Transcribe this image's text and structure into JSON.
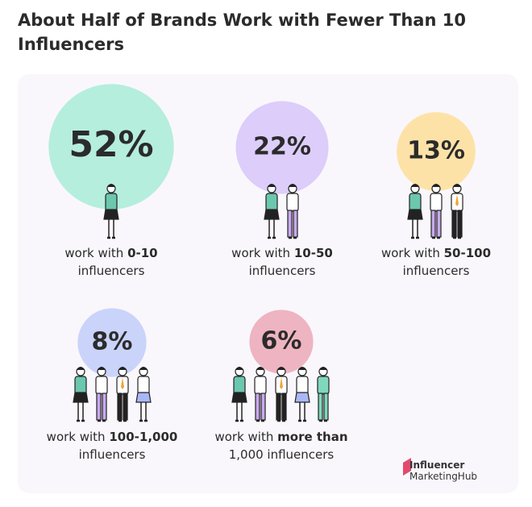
{
  "chart_data": {
    "type": "bubble",
    "title": "About Half of Brands Work with Fewer Than 10 Influencers",
    "values": [
      52,
      22,
      13,
      8,
      6
    ],
    "value_labels": [
      "52%",
      "22%",
      "13%",
      "8%",
      "6%"
    ],
    "colors": [
      "#b5eedd",
      "#ddcdfa",
      "#fde2a8",
      "#cad3fa",
      "#efb4c1"
    ],
    "labels": [
      [
        {
          "text": "work with ",
          "bold": false
        },
        {
          "text": "0-10",
          "bold": true
        },
        {
          "text": " influencers",
          "bold": false
        }
      ],
      [
        {
          "text": "work with ",
          "bold": false
        },
        {
          "text": "10-50",
          "bold": true
        },
        {
          "text": " influencers",
          "bold": false
        }
      ],
      [
        {
          "text": "work with ",
          "bold": false
        },
        {
          "text": "50-100",
          "bold": true
        },
        {
          "text": " influencers",
          "bold": false
        }
      ],
      [
        {
          "text": "work with ",
          "bold": false
        },
        {
          "text": "100-1,000",
          "bold": true
        },
        {
          "text": " influencers",
          "bold": false
        }
      ],
      [
        {
          "text": "work with ",
          "bold": false
        },
        {
          "text": "more than",
          "bold": true
        },
        {
          "text": " 1,000 influencers",
          "bold": false
        }
      ]
    ]
  },
  "logo": [
    "Influencer",
    "MarketingHub"
  ]
}
